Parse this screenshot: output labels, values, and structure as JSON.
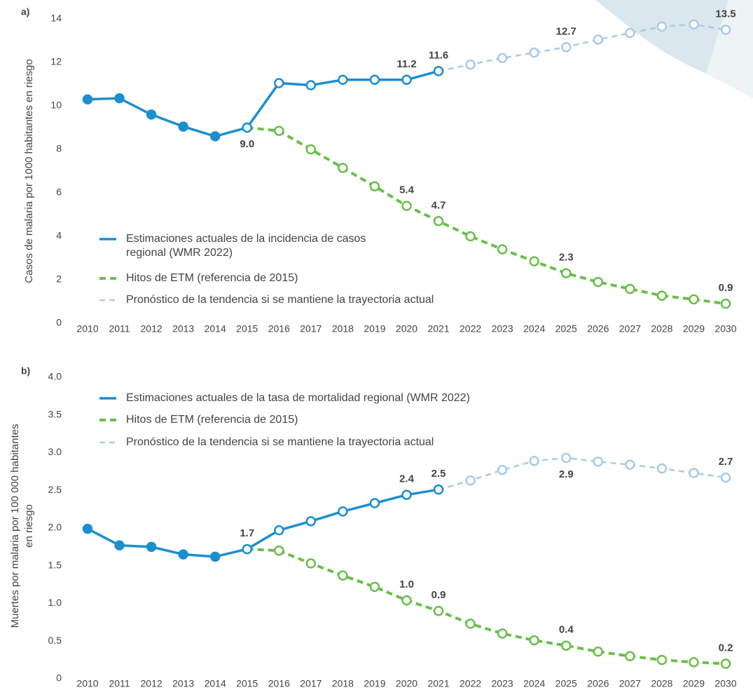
{
  "chart_data": [
    {
      "type": "line",
      "panel_label": "a)",
      "y_label": [
        "Casos de malaria por 1000 habitantes en riesgo"
      ],
      "categories": [
        "2010",
        "2011",
        "2012",
        "2013",
        "2014",
        "2015",
        "2016",
        "2017",
        "2018",
        "2019",
        "2020",
        "2021",
        "2022",
        "2023",
        "2024",
        "2025",
        "2026",
        "2027",
        "2028",
        "2029",
        "2030"
      ],
      "ylim": [
        0,
        14
      ],
      "yticks": [
        0,
        2,
        4,
        6,
        8,
        10,
        12,
        14
      ],
      "series": [
        {
          "name": "Estimaciones actuales de la incidencia de casos regional (WMR 2022)",
          "color": "#1b8fd0",
          "style": "solid",
          "values": [
            10.3,
            10.35,
            9.6,
            9.05,
            8.6,
            9.0,
            11.05,
            10.95,
            11.2,
            11.2,
            11.2,
            11.6,
            null,
            null,
            null,
            null,
            null,
            null,
            null,
            null,
            null
          ],
          "value_labels": [
            null,
            null,
            null,
            null,
            null,
            "9.0",
            null,
            null,
            null,
            null,
            "11.2",
            "11.6",
            null,
            null,
            null,
            null,
            null,
            null,
            null,
            null,
            null
          ]
        },
        {
          "name": "Hitos de ETM (referencia de 2015)",
          "color": "#6abf4b",
          "style": "dashed",
          "values": [
            null,
            null,
            null,
            null,
            null,
            9.0,
            8.85,
            8.0,
            7.15,
            6.3,
            5.4,
            4.7,
            4.0,
            3.4,
            2.85,
            2.3,
            1.9,
            1.58,
            1.27,
            1.1,
            0.9
          ],
          "value_labels": [
            null,
            null,
            null,
            null,
            null,
            null,
            null,
            null,
            null,
            null,
            "5.4",
            "4.7",
            null,
            null,
            null,
            "2.3",
            null,
            null,
            null,
            null,
            "0.9"
          ]
        },
        {
          "name": "Pronóstico de la tendencia si se mantiene la trayectoria actual",
          "color": "#a9cbe8",
          "style": "dashed-thin",
          "values": [
            null,
            null,
            null,
            null,
            null,
            null,
            null,
            null,
            null,
            null,
            null,
            11.6,
            11.9,
            12.2,
            12.45,
            12.7,
            13.05,
            13.35,
            13.65,
            13.75,
            13.5
          ],
          "value_labels": [
            null,
            null,
            null,
            null,
            null,
            null,
            null,
            null,
            null,
            null,
            null,
            null,
            null,
            null,
            null,
            "12.7",
            null,
            null,
            null,
            null,
            "13.5"
          ]
        }
      ]
    },
    {
      "type": "line",
      "panel_label": "b)",
      "y_label": [
        "Muertes por malaria por 100 000 habitantes",
        "en riesgo"
      ],
      "categories": [
        "2010",
        "2011",
        "2012",
        "2013",
        "2014",
        "2015",
        "2016",
        "2017",
        "2018",
        "2019",
        "2020",
        "2021",
        "2022",
        "2023",
        "2024",
        "2025",
        "2026",
        "2027",
        "2028",
        "2029",
        "2030"
      ],
      "ylim": [
        0,
        4
      ],
      "yticks": [
        0,
        0.5,
        {
          "value": 1,
          "label": "1.0"
        },
        1.5,
        {
          "value": 2,
          "label": "2.0"
        },
        2.5,
        {
          "value": 3,
          "label": "3.0"
        },
        3.5,
        {
          "value": 4,
          "label": "4.0"
        }
      ],
      "series": [
        {
          "name": "Estimaciones actuales de la tasa de mortalidad regional (WMR 2022)",
          "color": "#1b8fd0",
          "style": "solid",
          "values": [
            1.99,
            1.77,
            1.75,
            1.65,
            1.62,
            1.72,
            1.97,
            2.09,
            2.22,
            2.33,
            2.44,
            2.51,
            null,
            null,
            null,
            null,
            null,
            null,
            null,
            null,
            null
          ],
          "value_labels": [
            null,
            null,
            null,
            null,
            null,
            "1.7",
            null,
            null,
            null,
            null,
            "2.4",
            "2.5",
            null,
            null,
            null,
            null,
            null,
            null,
            null,
            null,
            null
          ]
        },
        {
          "name": "Hitos de ETM (referencia de 2015)",
          "color": "#6abf4b",
          "style": "dashed",
          "values": [
            null,
            null,
            null,
            null,
            null,
            1.72,
            1.7,
            1.53,
            1.37,
            1.22,
            1.04,
            0.9,
            0.73,
            0.6,
            0.51,
            0.44,
            0.36,
            0.3,
            0.25,
            0.22,
            0.2
          ],
          "value_labels": [
            null,
            null,
            null,
            null,
            null,
            null,
            null,
            null,
            null,
            null,
            "1.0",
            "0.9",
            null,
            null,
            null,
            "0.4",
            null,
            null,
            null,
            null,
            "0.2"
          ]
        },
        {
          "name": "Pronóstico de la tendencia si se mantiene la trayectoria actual",
          "color": "#a9cbe8",
          "style": "dashed-thin",
          "values": [
            null,
            null,
            null,
            null,
            null,
            null,
            null,
            null,
            null,
            null,
            null,
            2.51,
            2.63,
            2.77,
            2.89,
            2.93,
            2.88,
            2.84,
            2.79,
            2.73,
            2.67
          ],
          "value_labels": [
            null,
            null,
            null,
            null,
            null,
            null,
            null,
            null,
            null,
            null,
            null,
            null,
            null,
            null,
            null,
            "2.9",
            null,
            null,
            null,
            null,
            "2.7"
          ]
        }
      ]
    }
  ]
}
